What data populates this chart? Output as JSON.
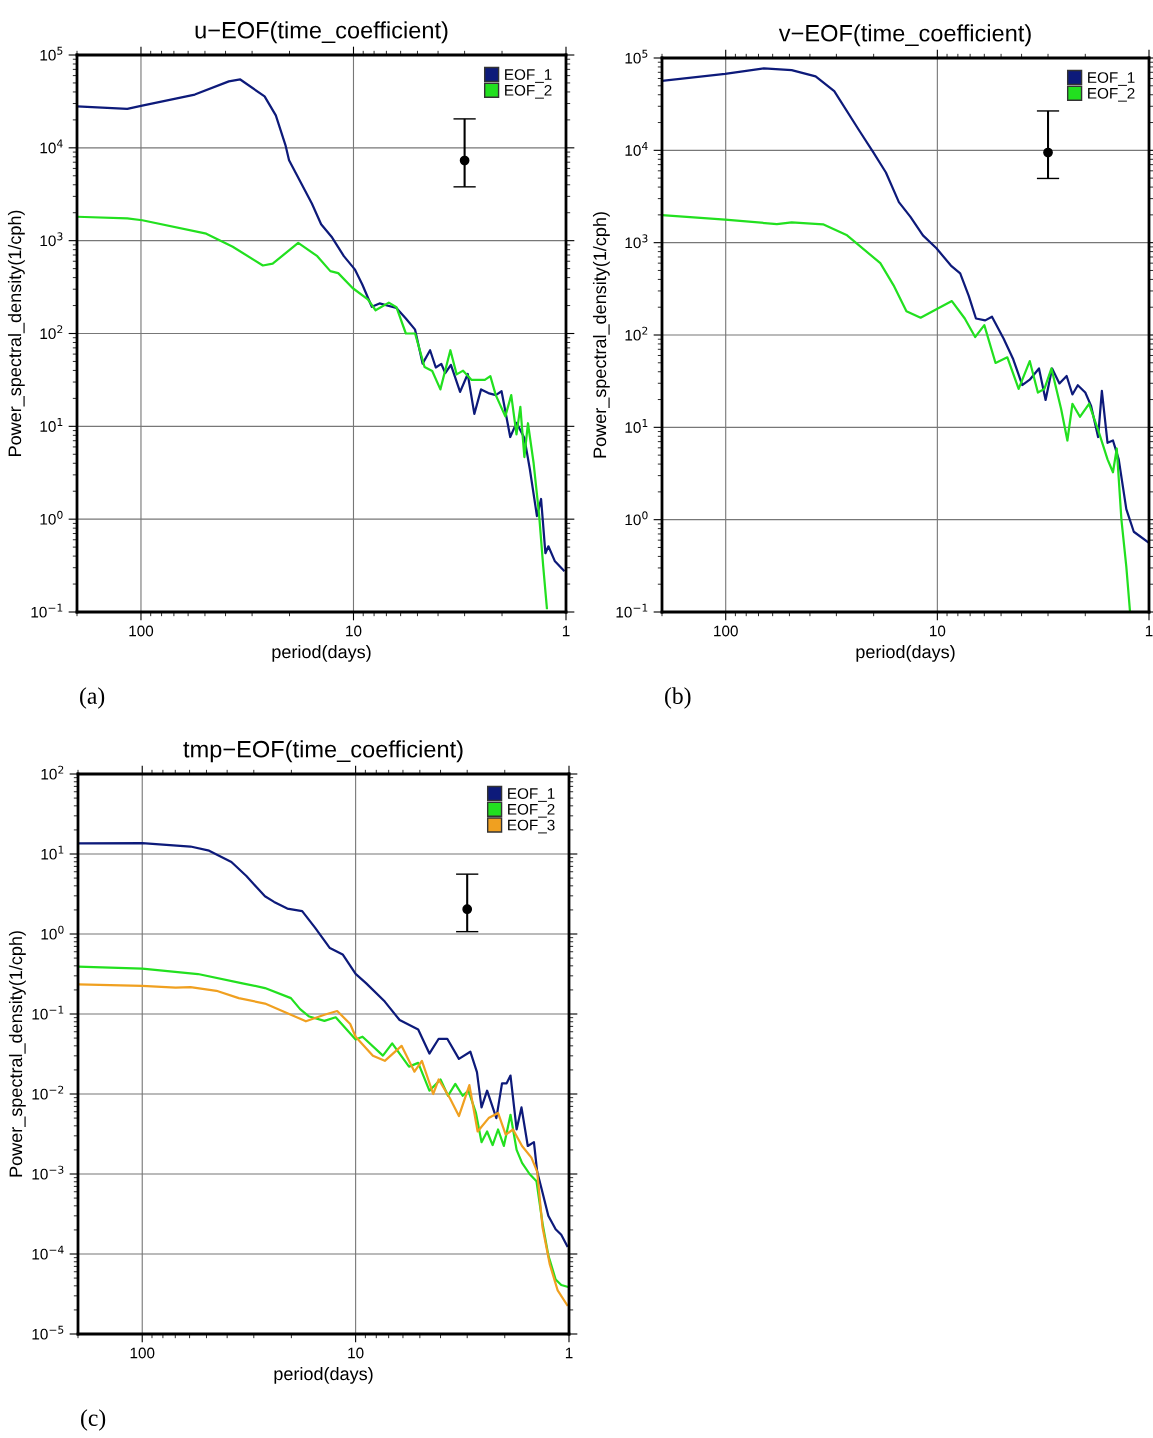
{
  "chart_data": [
    {
      "type": "line",
      "title": "u−EOF(time_coefficient)",
      "xlabel": "period(days)",
      "ylabel": "Power_spectral_density(1/cph)",
      "log": "xy",
      "xlim": [
        200,
        1
      ],
      "xticks": [
        100,
        10,
        1
      ],
      "ylim": [
        0.1,
        100000
      ],
      "yticks": [
        {
          "value": 0.1,
          "label": "10$^{−1}$"
        },
        {
          "value": 1,
          "label": "10$^{0}$"
        },
        {
          "value": 10,
          "label": "10$^{1}$"
        },
        {
          "value": 100,
          "label": "10$^{2}$"
        },
        {
          "value": 1000,
          "label": "10$^{3}$"
        },
        {
          "value": 10000,
          "label": "10$^{4}$"
        },
        {
          "value": 100000,
          "label": "10$^{5}$"
        }
      ],
      "grid": true,
      "legend": "top right",
      "annotations": [
        "(a)"
      ],
      "series": [
        {
          "name": "EOF_1",
          "color": "#0d1a7a",
          "x": [
            200,
            116,
            100,
            55.8,
            38.6,
            34.1,
            26.2,
            23.2,
            20.9,
            20.1,
            15.7,
            14.2,
            12.6,
            11.1,
            9.86,
            9.1,
            8.2,
            7.54,
            6.28,
            5.67,
            5.13,
            4.73,
            4.36,
            4.1,
            3.86,
            3.7,
            3.48,
            3.15,
            2.9,
            2.7,
            2.51,
            2.32,
            2.14,
            2.01,
            1.83,
            1.71,
            1.57,
            1.48,
            1.37,
            1.31,
            1.25,
            1.21,
            1.13,
            1.025
          ],
          "values": [
            27900,
            26300,
            28300,
            37500,
            52000,
            54500,
            35800,
            22400,
            10700,
            7340,
            2510,
            1500,
            1080,
            681,
            491,
            339,
            194,
            211,
            188,
            145,
            110,
            47.4,
            66,
            43,
            47,
            37.5,
            46,
            23.5,
            36.6,
            13.6,
            25,
            22.8,
            21.7,
            23.9,
            7.67,
            10.9,
            7.5,
            3.47,
            1.08,
            1.65,
            0.43,
            0.51,
            0.355,
            0.28
          ]
        },
        {
          "name": "EOF_2",
          "color": "#22e01f",
          "x": [
            200,
            116,
            98.6,
            49.3,
            37,
            26.7,
            24,
            18.2,
            14.8,
            12.85,
            11.8,
            10.1,
            8.56,
            7.87,
            6.82,
            6.28,
            5.67,
            5.13,
            4.63,
            4.26,
            3.9,
            3.5,
            3.27,
            3.05,
            2.78,
            2.41,
            2.27,
            2.14,
            1.93,
            1.81,
            1.71,
            1.64,
            1.57,
            1.51,
            1.42,
            1.34,
            1.28,
            1.23
          ],
          "values": [
            1810,
            1740,
            1660,
            1190,
            860,
            540,
            566,
            945,
            681,
            470,
            447,
            309,
            233,
            178,
            215,
            192,
            100,
            100,
            43.6,
            39.4,
            25,
            66,
            36.3,
            39.8,
            31.6,
            31.6,
            34.7,
            21.7,
            12.8,
            21.7,
            8.2,
            16.2,
            4.67,
            10.8,
            4.0,
            1.15,
            0.31,
            0.11
          ]
        },
        {
          "type": "scatter",
          "marker": "circle",
          "color": "#000000",
          "x": [
            3
          ],
          "values": [
            7300
          ],
          "errors": [
            [
              3800,
              20500
            ]
          ]
        }
      ]
    },
    {
      "type": "line",
      "title": "v−EOF(time_coefficient)",
      "xlabel": "period(days)",
      "ylabel": "Power_spectral_density(1/cph)",
      "log": "xy",
      "xlim": [
        200,
        1
      ],
      "xticks": [
        100,
        10,
        1
      ],
      "ylim": [
        0.1,
        100000
      ],
      "yticks": [
        {
          "value": 0.1,
          "label": "10$^{−1}$"
        },
        {
          "value": 1,
          "label": "10$^{0}$"
        },
        {
          "value": 10,
          "label": "10$^{1}$"
        },
        {
          "value": 100,
          "label": "10$^{2}$"
        },
        {
          "value": 1000,
          "label": "10$^{3}$"
        },
        {
          "value": 10000,
          "label": "10$^{4}$"
        },
        {
          "value": 100000,
          "label": "10$^{5}$"
        }
      ],
      "grid": true,
      "legend": "top right",
      "annotations": [
        "(b)"
      ],
      "series": [
        {
          "name": "EOF_1",
          "color": "#0d1a7a",
          "x": [
            200,
            100.7,
            66,
            48.8,
            37.6,
            30.7,
            23.2,
            20.1,
            17.5,
            15.2,
            13.4,
            11.7,
            10.1,
            8.63,
            7.8,
            7.1,
            6.57,
            5.94,
            5.52,
            4.86,
            4.38,
            3.97,
            3.66,
            3.31,
            3.08,
            2.87,
            2.65,
            2.45,
            2.3,
            2.17,
            2.0,
            1.88,
            1.74,
            1.67,
            1.57,
            1.48,
            1.39,
            1.28,
            1.18,
            1.0
          ],
          "values": [
            56500,
            67300,
            77300,
            73800,
            63300,
            43700,
            15900,
            9550,
            5750,
            2750,
            1900,
            1200,
            870,
            565,
            465,
            264,
            151,
            144,
            158,
            91,
            54.6,
            28.7,
            32.8,
            43.4,
            19.8,
            43.4,
            29.9,
            36,
            22.7,
            28.6,
            23.8,
            17.2,
            7.85,
            24.9,
            6.8,
            7.2,
            4.5,
            1.3,
            0.74,
            0.56
          ]
        },
        {
          "name": "EOF_2",
          "color": "#22e01f",
          "x": [
            200,
            100.7,
            57.3,
            48.8,
            34.7,
            26.7,
            18.6,
            16.1,
            14,
            12,
            9.9,
            8.54,
            7.42,
            6.63,
            6,
            5.31,
            4.67,
            4.13,
            3.66,
            3.35,
            3.12,
            2.89,
            2.6,
            2.43,
            2.3,
            2.12,
            1.92,
            1.74,
            1.57,
            1.48,
            1.42,
            1.35,
            1.28,
            1.23
          ],
          "values": [
            1990,
            1780,
            1590,
            1660,
            1580,
            1200,
            600,
            345,
            181,
            154,
            195,
            233,
            151,
            95,
            128,
            49.8,
            57.3,
            26.1,
            52.2,
            23.8,
            26.1,
            43.4,
            15.7,
            7.2,
            18,
            13,
            18,
            9.4,
            4.5,
            3.26,
            5.9,
            1.0,
            0.31,
            0.102
          ]
        },
        {
          "type": "scatter",
          "marker": "circle",
          "color": "#000000",
          "x": [
            3
          ],
          "values": [
            9460
          ],
          "errors": [
            [
              4960,
              26700
            ]
          ]
        }
      ]
    },
    {
      "type": "line",
      "title": "tmp−EOF(time_coefficient)",
      "xlabel": "period(days)",
      "ylabel": "Power_spectral_density(1/cph)",
      "log": "xy",
      "xlim": [
        200,
        1
      ],
      "xticks": [
        100,
        10,
        1
      ],
      "ylim": [
        1e-05,
        100
      ],
      "yticks": [
        {
          "value": 1e-05,
          "label": "10$^{−5}$"
        },
        {
          "value": 0.0001,
          "label": "10$^{−4}$"
        },
        {
          "value": 0.001,
          "label": "10$^{−3}$"
        },
        {
          "value": 0.01,
          "label": "10$^{−2}$"
        },
        {
          "value": 0.1,
          "label": "10$^{−1}$"
        },
        {
          "value": 1,
          "label": "10$^{0}$"
        },
        {
          "value": 10,
          "label": "10$^{1}$"
        },
        {
          "value": 100,
          "label": "10$^{2}$"
        }
      ],
      "grid": true,
      "legend": "top right",
      "annotations": [
        "(c)"
      ],
      "series": [
        {
          "name": "EOF_1",
          "color": "#0d1a7a",
          "x": [
            200,
            100,
            59.4,
            48.6,
            38.2,
            32.5,
            26.6,
            24.1,
            20.9,
            17.8,
            15.5,
            13.2,
            11.5,
            10,
            8.94,
            7.3,
            6.22,
            5.09,
            4.51,
            4.08,
            3.72,
            3.28,
            2.9,
            2.7,
            2.57,
            2.42,
            2.19,
            2.06,
            1.96,
            1.88,
            1.76,
            1.67,
            1.56,
            1.46,
            1.41,
            1.34,
            1.25,
            1.155,
            1.087,
            1.02
          ],
          "values": [
            13.6,
            13.7,
            12.4,
            11,
            7.95,
            5.3,
            2.96,
            2.52,
            2.08,
            1.93,
            1.2,
            0.667,
            0.556,
            0.317,
            0.243,
            0.143,
            0.084,
            0.064,
            0.032,
            0.049,
            0.049,
            0.0275,
            0.0338,
            0.0188,
            0.0068,
            0.011,
            0.005,
            0.0136,
            0.0136,
            0.017,
            0.0036,
            0.0068,
            0.00224,
            0.0025,
            0.00107,
            0.00063,
            0.0003,
            0.000204,
            0.000174,
            0.000126
          ]
        },
        {
          "name": "EOF_2",
          "color": "#22e01f",
          "x": [
            200,
            100,
            54.8,
            33.9,
            26.6,
            20.1,
            18.2,
            16.5,
            14,
            12.4,
            10,
            9.28,
            7.45,
            6.74,
            5.62,
            5.09,
            4.51,
            4,
            3.69,
            3.41,
            3.15,
            2.96,
            2.73,
            2.57,
            2.42,
            2.28,
            2.15,
            2.02,
            1.88,
            1.76,
            1.66,
            1.53,
            1.42,
            1.33,
            1.25,
            1.155,
            1.087,
            1.02
          ],
          "values": [
            0.39,
            0.37,
            0.316,
            0.242,
            0.211,
            0.158,
            0.115,
            0.093,
            0.082,
            0.091,
            0.048,
            0.052,
            0.0302,
            0.043,
            0.022,
            0.0245,
            0.011,
            0.0152,
            0.0095,
            0.0134,
            0.0095,
            0.011,
            0.0058,
            0.0025,
            0.0034,
            0.0023,
            0.0036,
            0.00224,
            0.0055,
            0.002,
            0.00138,
            0.001,
            0.00081,
            0.00024,
            9.6e-05,
            4.8e-05,
            4.1e-05,
            3.9e-05
          ]
        },
        {
          "name": "EOF_3",
          "color": "#f0a020",
          "x": [
            200,
            100,
            69.7,
            59.4,
            44.9,
            35.3,
            26.6,
            20.1,
            17.1,
            14,
            12.2,
            10.6,
            10,
            8.3,
            7.3,
            6.09,
            5.3,
            4.89,
            4.33,
            4.08,
            3.62,
            3.28,
            2.93,
            2.68,
            2.38,
            2.15,
            1.98,
            1.83,
            1.66,
            1.5,
            1.41,
            1.33,
            1.23,
            1.13,
            1.02
          ],
          "values": [
            0.234,
            0.224,
            0.213,
            0.217,
            0.195,
            0.158,
            0.135,
            0.098,
            0.081,
            0.098,
            0.109,
            0.075,
            0.052,
            0.03,
            0.026,
            0.04,
            0.019,
            0.026,
            0.01,
            0.0152,
            0.0089,
            0.0053,
            0.0129,
            0.0034,
            0.005,
            0.0058,
            0.0031,
            0.0036,
            0.00224,
            0.0016,
            0.00107,
            0.000214,
            7.4e-05,
            3.5e-05,
            2.3e-05
          ]
        },
        {
          "type": "scatter",
          "marker": "circle",
          "color": "#000000",
          "x": [
            3
          ],
          "values": [
            2.04
          ],
          "errors": [
            [
              1.07,
              5.6
            ]
          ]
        }
      ]
    }
  ]
}
